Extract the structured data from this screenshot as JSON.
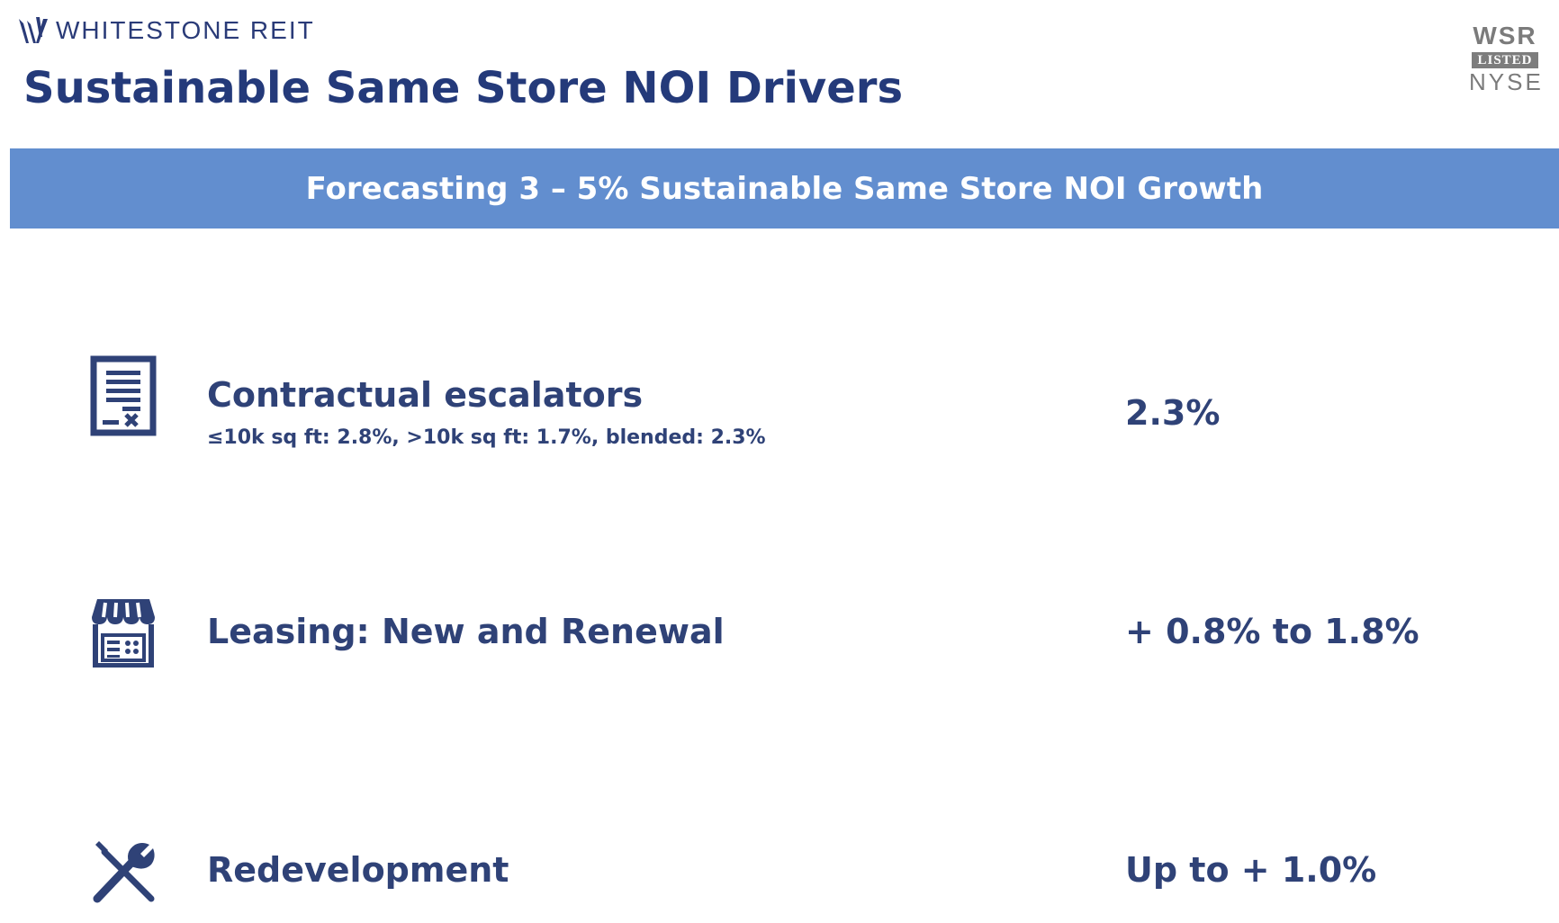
{
  "header": {
    "logo_text": "WHITESTONE REIT",
    "title": "Sustainable Same Store NOI Drivers"
  },
  "badge": {
    "symbol": "WSR",
    "listed": "LISTED",
    "exchange": "NYSE"
  },
  "banner": {
    "text": "Forecasting 3 – 5% Sustainable Same Store NOI Growth"
  },
  "drivers": [
    {
      "icon": "contract-icon",
      "label": "Contractual escalators",
      "detail": "≤10k sq ft: 2.8%, >10k sq ft: 1.7%, blended: 2.3%",
      "value": "2.3%"
    },
    {
      "icon": "storefront-icon",
      "label": "Leasing:  New and Renewal",
      "value": "+ 0.8% to 1.8%"
    },
    {
      "icon": "tools-icon",
      "label": "Redevelopment",
      "value": "Up to + 1.0%"
    }
  ],
  "colors": {
    "title": "#243a7a",
    "text": "#2f4277",
    "banner": "#628ecf",
    "badge_gray": "#7b7b7b"
  }
}
